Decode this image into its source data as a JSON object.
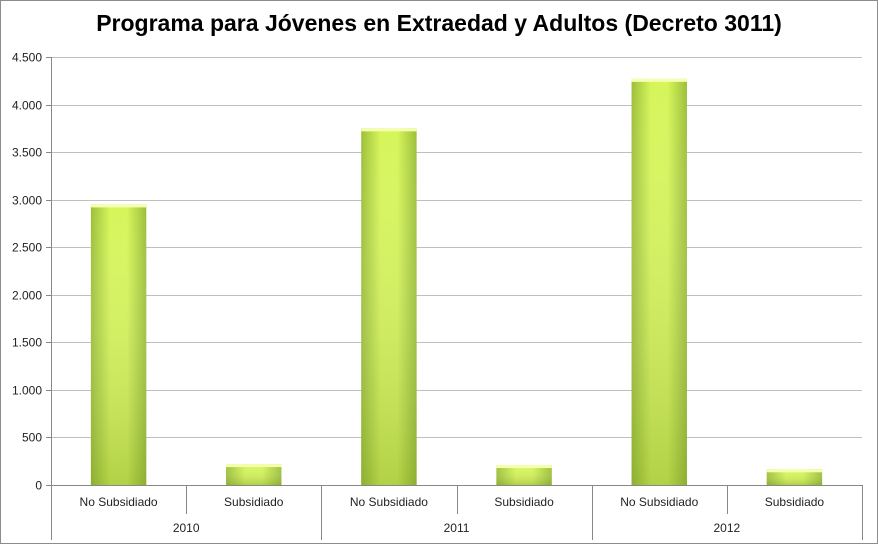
{
  "chart_data": {
    "type": "bar",
    "title": "Programa para Jóvenes en Extraedad y Adultos (Decreto 3011)",
    "xlabel": "",
    "ylabel": "",
    "ylim": [
      0,
      4500
    ],
    "y_ticks": [
      0,
      500,
      1000,
      1500,
      2000,
      2500,
      3000,
      3500,
      4000,
      4500
    ],
    "y_tick_labels": [
      "0",
      "500",
      "1.000",
      "1.500",
      "2.000",
      "2.500",
      "3.000",
      "3.500",
      "4.000",
      "4.500"
    ],
    "groups": [
      {
        "label": "2010",
        "categories": [
          "No Subsidiado",
          "Subsidiado"
        ],
        "values": [
          2950,
          220
        ]
      },
      {
        "label": "2011",
        "categories": [
          "No Subsidiado",
          "Subsidiado"
        ],
        "values": [
          3750,
          210
        ]
      },
      {
        "label": "2012",
        "categories": [
          "No Subsidiado",
          "Subsidiado"
        ],
        "values": [
          4270,
          165
        ]
      }
    ],
    "grid": true,
    "legend": "none",
    "bar_color": "#d6f55a",
    "bar_color_dark": "#9cbf3a",
    "gridline_color": "#bfbfbf"
  }
}
